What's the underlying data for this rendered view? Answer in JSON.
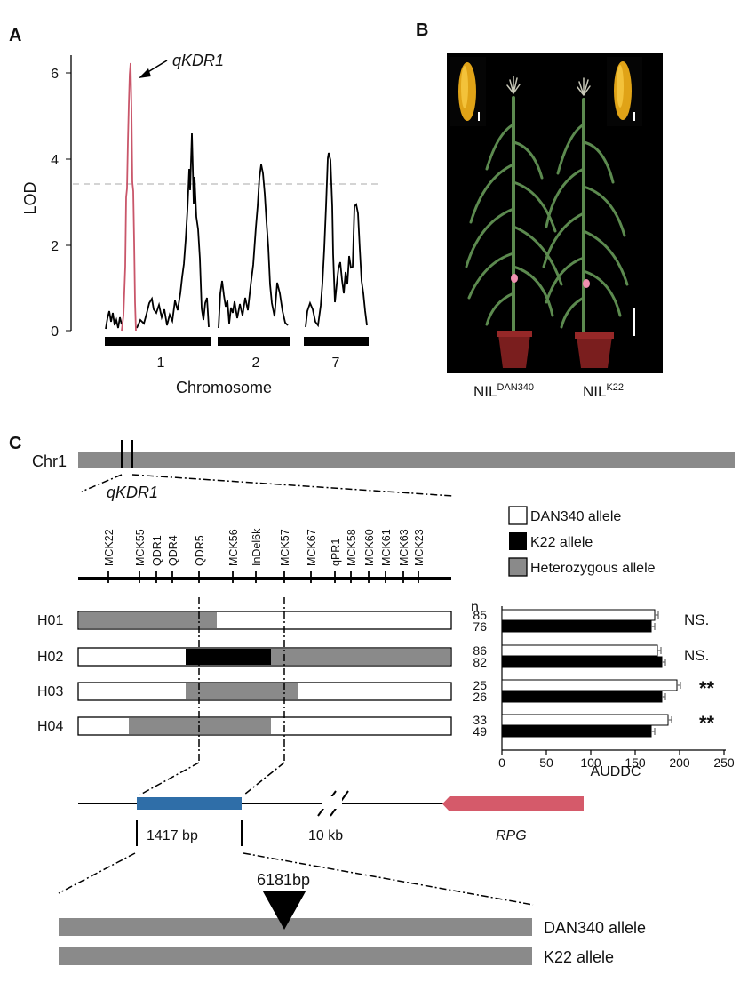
{
  "panelA": {
    "label": "A",
    "ylabel": "LOD",
    "xlabel": "Chromosome",
    "yticks": [
      "0",
      "2",
      "4",
      "6"
    ],
    "chromosomes": [
      "1",
      "2",
      "7"
    ],
    "peak_label": "qKDR1",
    "threshold": 3.4,
    "colors": {
      "peak": "#c9566a",
      "trace": "#000000",
      "threshold": "#bbbbbb"
    }
  },
  "panelB": {
    "label": "B",
    "nil1_base": "NIL",
    "nil1_sup": "DAN340",
    "nil2_base": "NIL",
    "nil2_sup": "K22"
  },
  "panelC": {
    "label": "C",
    "chr_label": "Chr1",
    "region_label": "qKDR1",
    "markers": [
      "MCK22",
      "MCK55",
      "QDR1",
      "QDR4",
      "QDR5",
      "MCK56",
      "InDel6k",
      "MCK57",
      "MCK67",
      "qPR1",
      "MCK58",
      "MCK60",
      "MCK61",
      "MCK63",
      "MCK23"
    ],
    "legend": [
      {
        "label": "DAN340 allele",
        "color": "#ffffff"
      },
      {
        "label": "K22 allele",
        "color": "#000000"
      },
      {
        "label": "Heterozygous allele",
        "color": "#8a8a8a"
      }
    ],
    "haplotypes": [
      {
        "name": "H01"
      },
      {
        "name": "H02"
      },
      {
        "name": "H03"
      },
      {
        "name": "H04"
      }
    ],
    "gene_labels": {
      "segment_length": "1417 bp",
      "gap": "10 kb",
      "gene": "RPG"
    },
    "insertion_label": "6181bp",
    "allele_labels": [
      "DAN340 allele",
      "K22 allele"
    ],
    "colors": {
      "gene_box": "#2f6ea8",
      "rpg": "#d55a6a",
      "grey": "#8a8a8a"
    }
  },
  "chart_data": [
    {
      "type": "line",
      "panel": "A",
      "title": "",
      "xlabel": "Chromosome",
      "ylabel": "LOD",
      "ylim": [
        0,
        6.5
      ],
      "categories": [
        "1",
        "2",
        "7"
      ],
      "threshold": 3.4,
      "series": [
        {
          "name": "",
          "chromosome": "1",
          "peaks": [
            {
              "position": "qKDR1",
              "lod": 6.2
            },
            {
              "lod": 4.6
            }
          ]
        },
        {
          "name": "",
          "chromosome": "2",
          "peaks": [
            {
              "lod": 3.9
            }
          ]
        },
        {
          "name": "",
          "chromosome": "7",
          "peaks": [
            {
              "lod": 4.2
            },
            {
              "lod": 3.0
            }
          ]
        }
      ],
      "annotations": [
        "qKDR1"
      ]
    },
    {
      "type": "bar",
      "panel": "C",
      "orientation": "horizontal",
      "xlabel": "AUDDC",
      "xlim": [
        0,
        250
      ],
      "xticks": [
        "0",
        "50",
        "100",
        "150",
        "200",
        "250"
      ],
      "n_label": "n",
      "categories": [
        "H01",
        "H02",
        "H03",
        "H04"
      ],
      "series": [
        {
          "name": "DAN340 allele",
          "values": [
            172,
            175,
            197,
            187
          ],
          "n": [
            "85",
            "86",
            "25",
            "33"
          ]
        },
        {
          "name": "K22 allele",
          "values": [
            168,
            180,
            180,
            168
          ],
          "n": [
            "76",
            "82",
            "26",
            "49"
          ]
        }
      ],
      "significance": [
        "NS.",
        "NS.",
        "**",
        "**"
      ]
    }
  ]
}
